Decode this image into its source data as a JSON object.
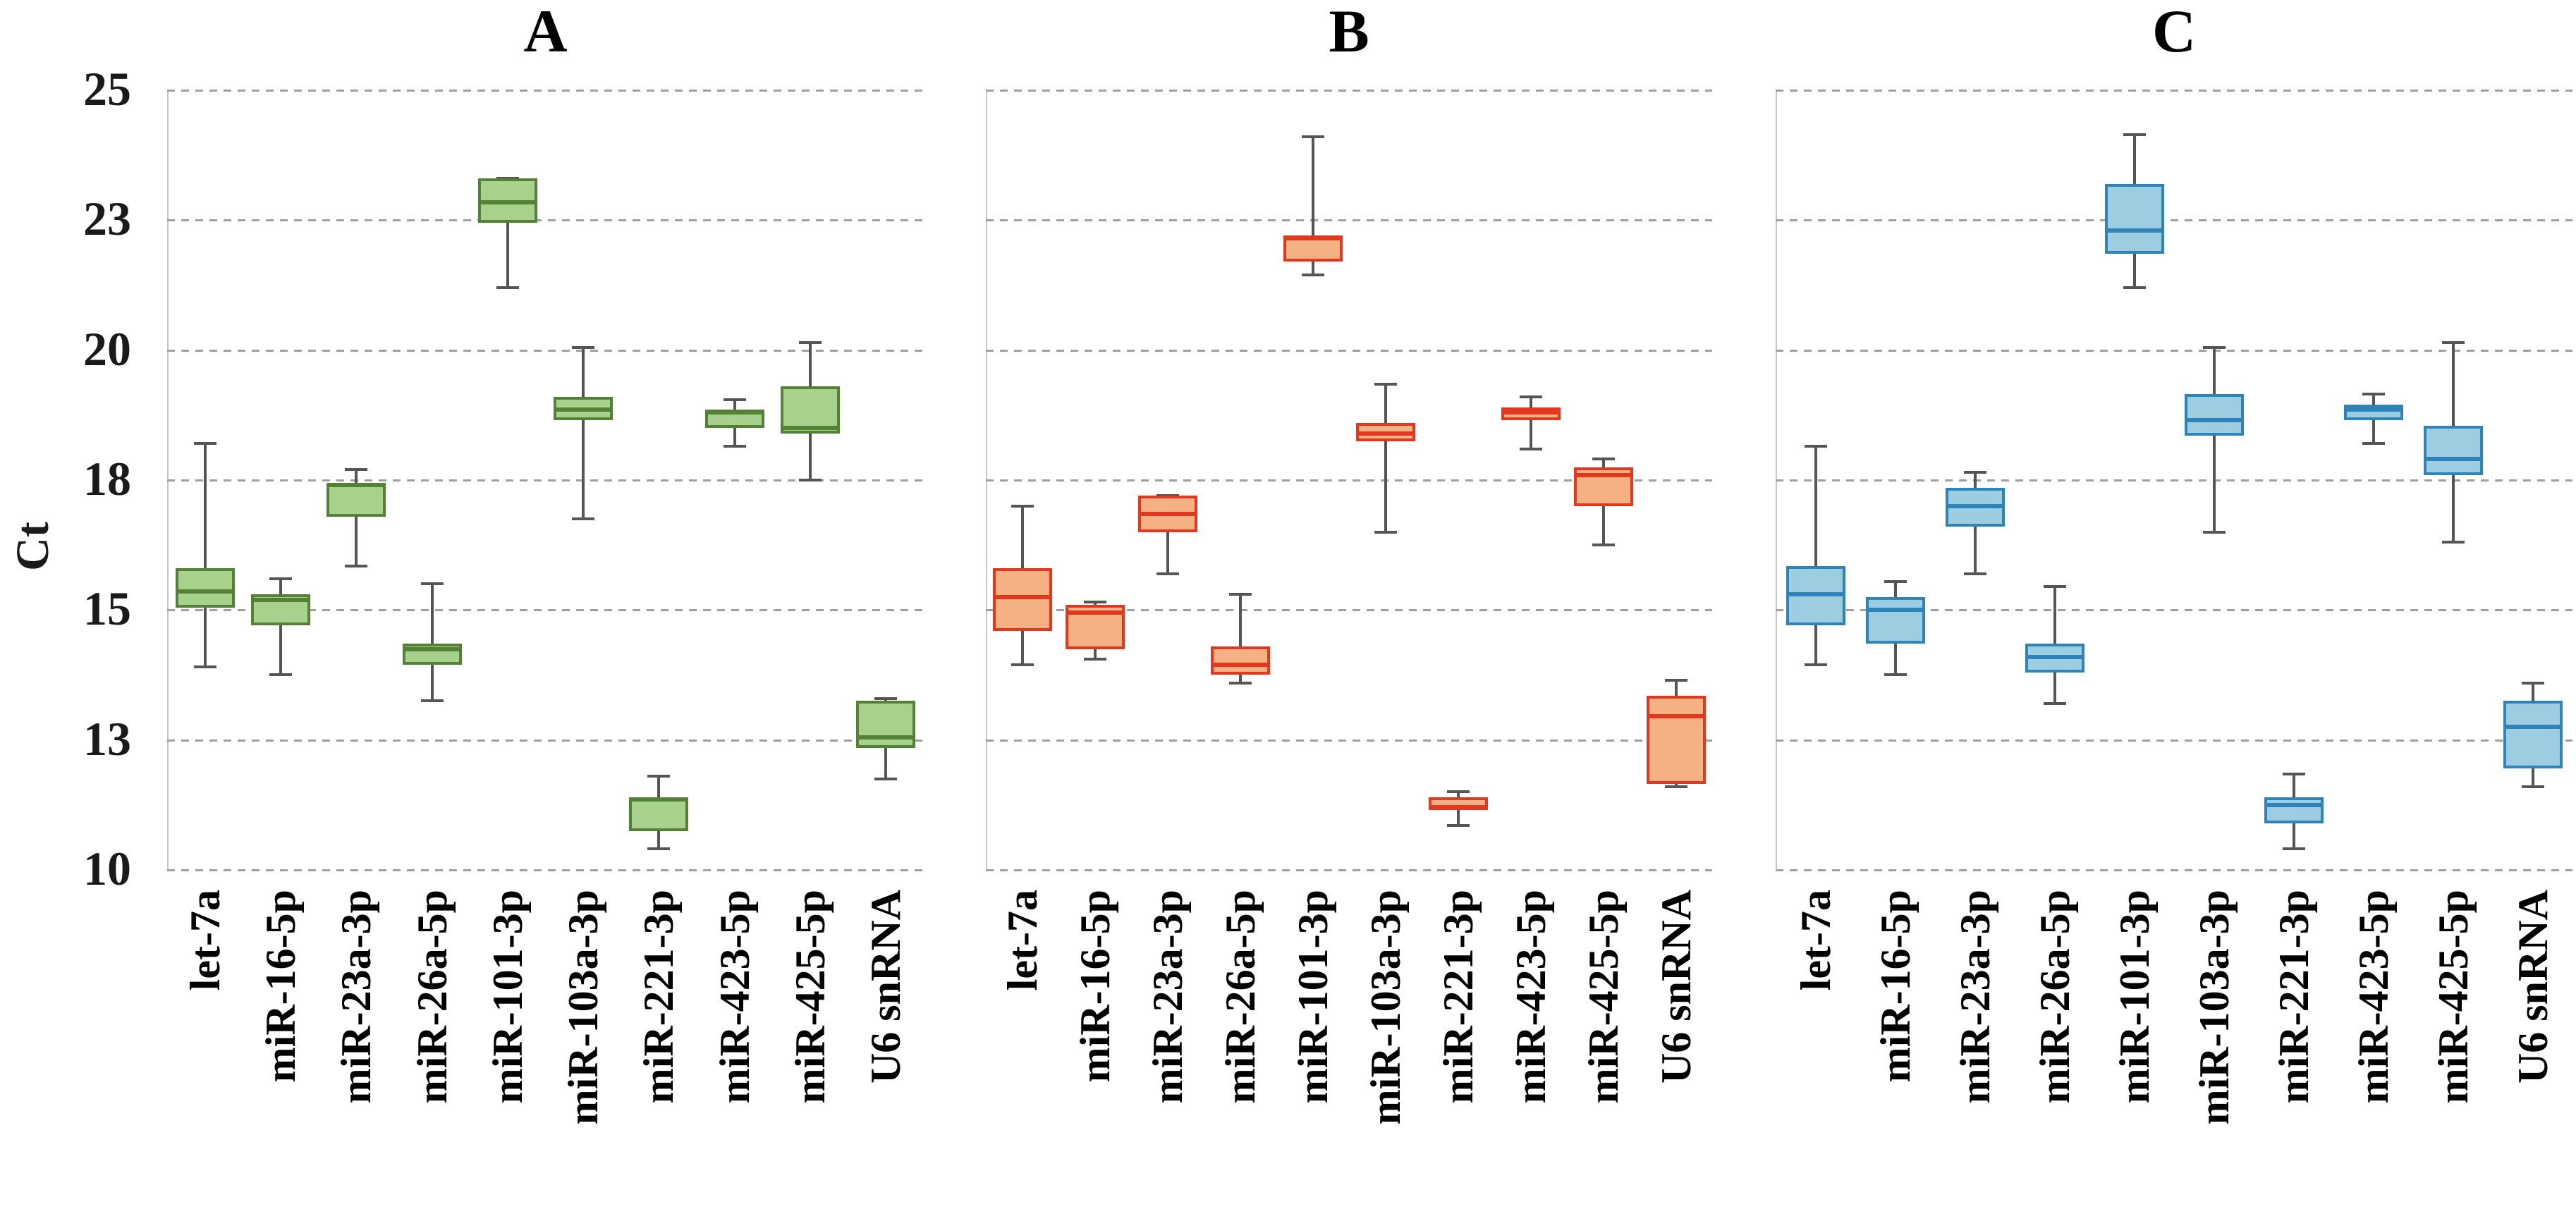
{
  "figure": {
    "y_axis": {
      "title": "Ct",
      "ticks": [
        {
          "label": "25",
          "value": 25
        },
        {
          "label": "23",
          "value": 22.5
        },
        {
          "label": "20",
          "value": 20
        },
        {
          "label": "18",
          "value": 17.5
        },
        {
          "label": "15",
          "value": 15
        },
        {
          "label": "13",
          "value": 12.5
        },
        {
          "label": "10",
          "value": 10
        }
      ]
    },
    "categories": [
      "let-7a",
      "miR-16-5p",
      "miR-23a-3p",
      "miR-26a-5p",
      "miR-101-3p",
      "miR-103a-3p",
      "miR-221-3p",
      "miR-423-5p",
      "miR-425-5p",
      "U6 snRNA"
    ]
  },
  "chart_data": [
    {
      "type": "boxplot",
      "title": "A",
      "ylabel": "Ct",
      "ylim": [
        10,
        25
      ],
      "grid": "horizontal-dashed",
      "colors": {
        "fill": "#A9D18E",
        "stroke": "#538135",
        "whisker": "#555555"
      },
      "categories": [
        "let-7a",
        "miR-16-5p",
        "miR-23a-3p",
        "miR-26a-5p",
        "miR-101-3p",
        "miR-103a-3p",
        "miR-221-3p",
        "miR-423-5p",
        "miR-425-5p",
        "U6 snRNA"
      ],
      "boxes": [
        {
          "category": "let-7a",
          "whisker_low": 13.9,
          "q1": 15.05,
          "median": 15.35,
          "q3": 15.8,
          "whisker_high": 18.2
        },
        {
          "category": "miR-16-5p",
          "whisker_low": 13.75,
          "q1": 14.7,
          "median": 15.2,
          "q3": 15.3,
          "whisker_high": 15.6
        },
        {
          "category": "miR-23a-3p",
          "whisker_low": 15.85,
          "q1": 16.8,
          "median": 17.4,
          "q3": 17.45,
          "whisker_high": 17.7
        },
        {
          "category": "miR-26a-5p",
          "whisker_low": 13.25,
          "q1": 13.95,
          "median": 14.25,
          "q3": 14.35,
          "whisker_high": 15.5
        },
        {
          "category": "miR-101-3p",
          "whisker_low": 21.2,
          "q1": 22.45,
          "median": 22.85,
          "q3": 23.3,
          "whisker_high": 23.3
        },
        {
          "category": "miR-103a-3p",
          "whisker_low": 16.75,
          "q1": 18.65,
          "median": 18.85,
          "q3": 19.1,
          "whisker_high": 20.05
        },
        {
          "category": "miR-221-3p",
          "whisker_low": 10.4,
          "q1": 10.75,
          "median": 11.35,
          "q3": 11.4,
          "whisker_high": 11.8
        },
        {
          "category": "miR-423-5p",
          "whisker_low": 18.15,
          "q1": 18.5,
          "median": 18.8,
          "q3": 18.85,
          "whisker_high": 19.05
        },
        {
          "category": "miR-425-5p",
          "whisker_low": 17.5,
          "q1": 18.4,
          "median": 18.5,
          "q3": 19.3,
          "whisker_high": 20.15
        },
        {
          "category": "U6 snRNA",
          "whisker_low": 11.75,
          "q1": 12.35,
          "median": 12.55,
          "q3": 13.25,
          "whisker_high": 13.3
        }
      ]
    },
    {
      "type": "boxplot",
      "title": "B",
      "ylabel": "Ct",
      "ylim": [
        10,
        25
      ],
      "grid": "horizontal-dashed",
      "colors": {
        "fill": "#F5B183",
        "stroke": "#E0391F",
        "whisker": "#555555"
      },
      "categories": [
        "let-7a",
        "miR-16-5p",
        "miR-23a-3p",
        "miR-26a-5p",
        "miR-101-3p",
        "miR-103a-3p",
        "miR-221-3p",
        "miR-423-5p",
        "miR-425-5p",
        "U6 snRNA"
      ],
      "boxes": [
        {
          "category": "let-7a",
          "whisker_low": 13.95,
          "q1": 14.6,
          "median": 15.25,
          "q3": 15.8,
          "whisker_high": 17.0
        },
        {
          "category": "miR-16-5p",
          "whisker_low": 14.05,
          "q1": 14.25,
          "median": 14.95,
          "q3": 15.1,
          "whisker_high": 15.15
        },
        {
          "category": "miR-23a-3p",
          "whisker_low": 15.7,
          "q1": 16.5,
          "median": 16.85,
          "q3": 17.2,
          "whisker_high": 17.2
        },
        {
          "category": "miR-26a-5p",
          "whisker_low": 13.6,
          "q1": 13.75,
          "median": 13.95,
          "q3": 14.3,
          "whisker_high": 15.3
        },
        {
          "category": "miR-101-3p",
          "whisker_low": 21.45,
          "q1": 21.7,
          "median": 22.15,
          "q3": 22.2,
          "whisker_high": 24.1
        },
        {
          "category": "miR-103a-3p",
          "whisker_low": 16.5,
          "q1": 18.25,
          "median": 18.4,
          "q3": 18.6,
          "whisker_high": 19.35
        },
        {
          "category": "miR-221-3p",
          "whisker_low": 10.85,
          "q1": 11.15,
          "median": 11.2,
          "q3": 11.4,
          "whisker_high": 11.5
        },
        {
          "category": "miR-423-5p",
          "whisker_low": 18.1,
          "q1": 18.65,
          "median": 18.8,
          "q3": 18.9,
          "whisker_high": 19.1
        },
        {
          "category": "miR-425-5p",
          "whisker_low": 16.25,
          "q1": 17.0,
          "median": 17.6,
          "q3": 17.75,
          "whisker_high": 17.9
        },
        {
          "category": "U6 snRNA",
          "whisker_low": 11.6,
          "q1": 11.65,
          "median": 12.95,
          "q3": 13.35,
          "whisker_high": 13.65
        }
      ]
    },
    {
      "type": "boxplot",
      "title": "C",
      "ylabel": "Ct",
      "ylim": [
        10,
        25
      ],
      "grid": "horizontal-dashed",
      "colors": {
        "fill": "#9DCDE0",
        "stroke": "#2E83B8",
        "whisker": "#555555"
      },
      "categories": [
        "let-7a",
        "miR-16-5p",
        "miR-23a-3p",
        "miR-26a-5p",
        "miR-101-3p",
        "miR-103a-3p",
        "miR-221-3p",
        "miR-423-5p",
        "miR-425-5p",
        "U6 snRNA"
      ],
      "boxes": [
        {
          "category": "let-7a",
          "whisker_low": 13.95,
          "q1": 14.7,
          "median": 15.3,
          "q3": 15.85,
          "whisker_high": 18.15
        },
        {
          "category": "miR-16-5p",
          "whisker_low": 13.75,
          "q1": 14.35,
          "median": 15.0,
          "q3": 15.25,
          "whisker_high": 15.55
        },
        {
          "category": "miR-23a-3p",
          "whisker_low": 15.7,
          "q1": 16.6,
          "median": 17.0,
          "q3": 17.35,
          "whisker_high": 17.65
        },
        {
          "category": "miR-26a-5p",
          "whisker_low": 13.2,
          "q1": 13.8,
          "median": 14.1,
          "q3": 14.35,
          "whisker_high": 15.45
        },
        {
          "category": "miR-101-3p",
          "whisker_low": 21.2,
          "q1": 21.85,
          "median": 22.3,
          "q3": 23.2,
          "whisker_high": 24.15
        },
        {
          "category": "miR-103a-3p",
          "whisker_low": 16.5,
          "q1": 18.35,
          "median": 18.65,
          "q3": 19.15,
          "whisker_high": 20.05
        },
        {
          "category": "miR-221-3p",
          "whisker_low": 10.4,
          "q1": 10.9,
          "median": 11.25,
          "q3": 11.4,
          "whisker_high": 11.85
        },
        {
          "category": "miR-423-5p",
          "whisker_low": 18.2,
          "q1": 18.65,
          "median": 18.85,
          "q3": 18.95,
          "whisker_high": 19.15
        },
        {
          "category": "miR-425-5p",
          "whisker_low": 16.3,
          "q1": 17.6,
          "median": 17.9,
          "q3": 18.55,
          "whisker_high": 20.15
        },
        {
          "category": "U6 snRNA",
          "whisker_low": 11.6,
          "q1": 11.95,
          "median": 12.75,
          "q3": 13.25,
          "whisker_high": 13.6
        }
      ]
    }
  ]
}
